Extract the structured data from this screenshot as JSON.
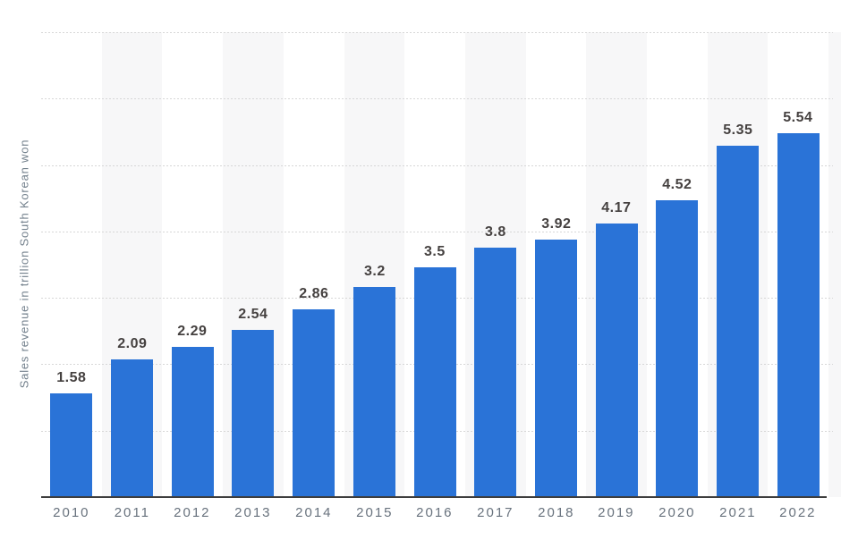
{
  "chart_data": {
    "type": "bar",
    "categories": [
      "2010",
      "2011",
      "2012",
      "2013",
      "2014",
      "2015",
      "2016",
      "2017",
      "2018",
      "2019",
      "2020",
      "2021",
      "2022"
    ],
    "values": [
      1.58,
      2.09,
      2.29,
      2.54,
      2.86,
      3.2,
      3.5,
      3.8,
      3.92,
      4.17,
      4.52,
      5.35,
      5.54
    ],
    "value_labels": [
      "1.58",
      "2.09",
      "2.29",
      "2.54",
      "2.86",
      "3.2",
      "3.5",
      "3.8",
      "3.92",
      "4.17",
      "4.52",
      "5.35",
      "5.54"
    ],
    "title": "",
    "xlabel": "",
    "ylabel": "Sales revenue in trillion South Korean won",
    "ylim": [
      0,
      7
    ],
    "grid": "horizontal dotted lines every 1 trillion, no y tick labels",
    "legend": "none",
    "bar_color": "#2a73d7",
    "stripe_color": "#f7f7f8",
    "axis_line_color": "#3d3d3d",
    "value_label_color": "#454140",
    "x_label_color": "#68727d",
    "y_title_color": "#73808c",
    "gridline_color": "#d7d7d7"
  }
}
